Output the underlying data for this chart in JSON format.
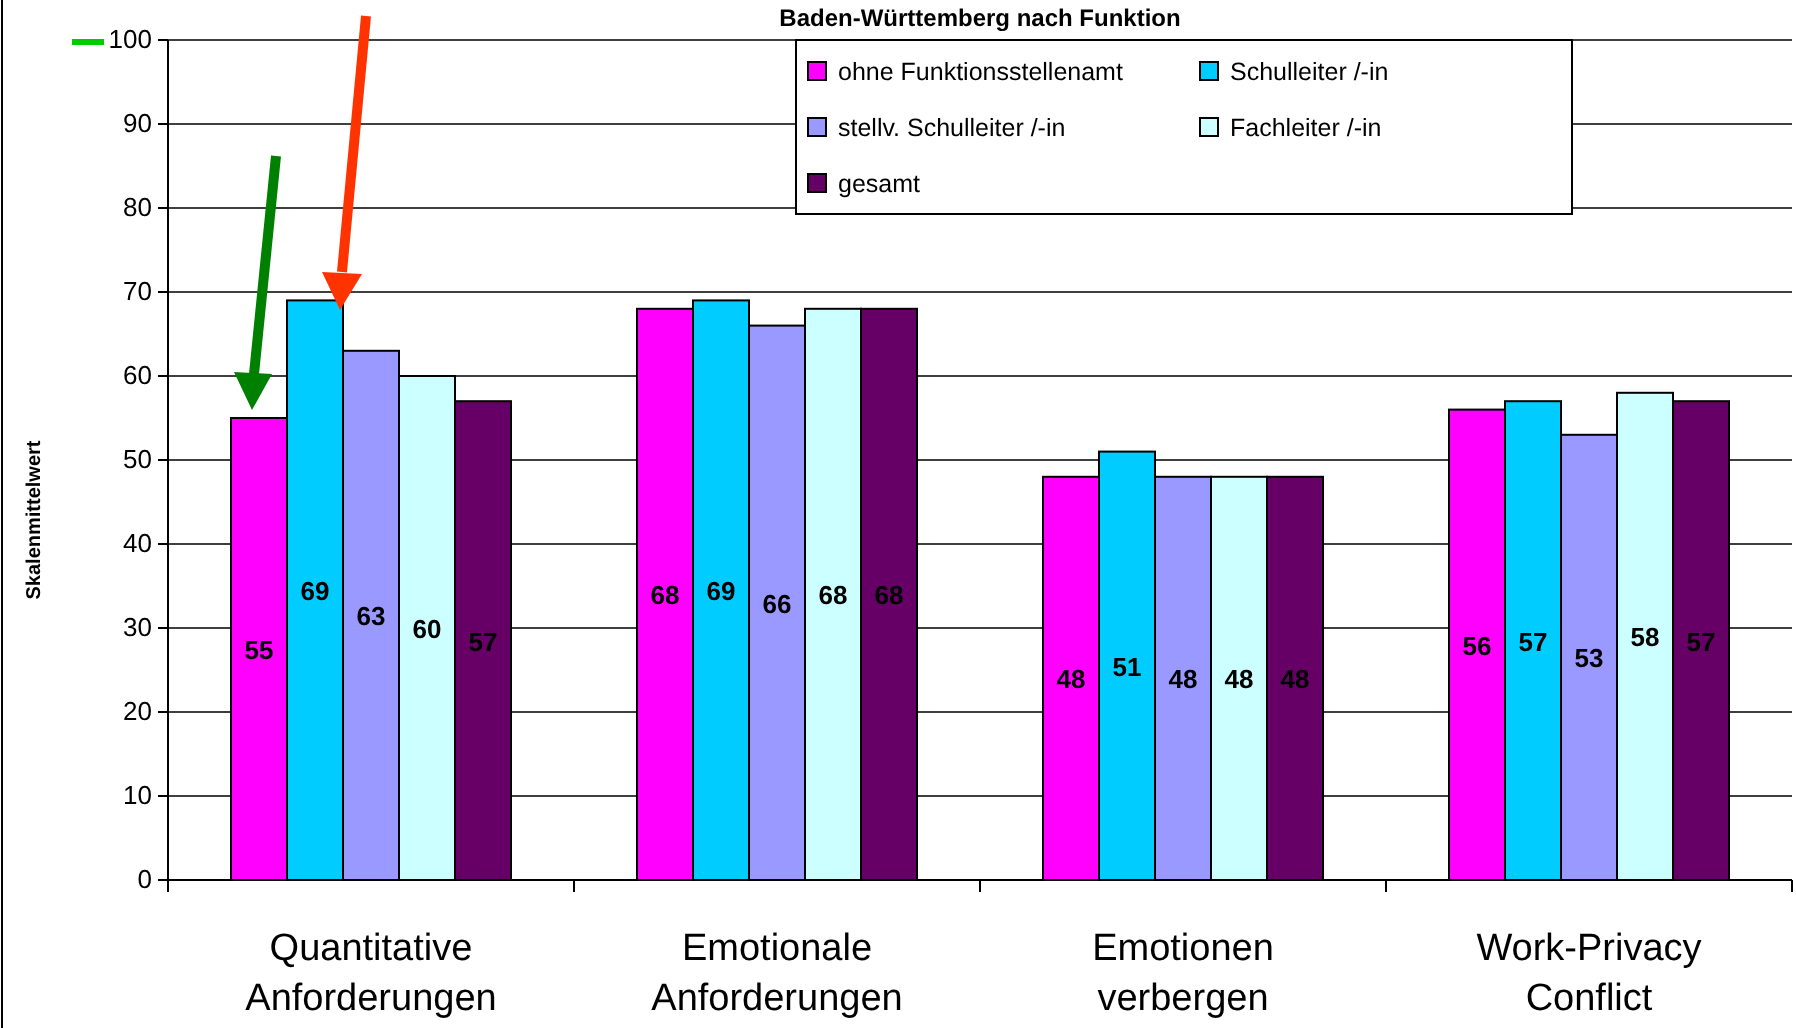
{
  "chart_data": {
    "type": "bar",
    "title": "Baden-Württemberg nach Funktion",
    "ylabel": "Skalenmittelwert",
    "categories": [
      "Quantitative Anforderungen",
      "Emotionale Anforderungen",
      "Emotionen verbergen",
      "Work-Privacy Conflict"
    ],
    "series": [
      {
        "name": "ohne Funktionsstellenamt",
        "color": "#ff00ff",
        "values": [
          55,
          68,
          48,
          56
        ]
      },
      {
        "name": "Schulleiter  /-in",
        "color": "#00ccff",
        "values": [
          69,
          69,
          51,
          57
        ]
      },
      {
        "name": "stellv. Schulleiter /-in",
        "color": "#9999ff",
        "values": [
          63,
          66,
          48,
          53
        ]
      },
      {
        "name": "Fachleiter   /-in",
        "color": "#ccffff",
        "values": [
          60,
          68,
          48,
          58
        ]
      },
      {
        "name": "gesamt",
        "color": "#660066",
        "values": [
          57,
          68,
          48,
          57
        ]
      }
    ],
    "ylim": [
      0,
      100
    ],
    "yticks": [
      0,
      10,
      20,
      30,
      40,
      50,
      60,
      70,
      80,
      90,
      100
    ],
    "grid": "y",
    "legend": "top right",
    "data_labels": true
  }
}
